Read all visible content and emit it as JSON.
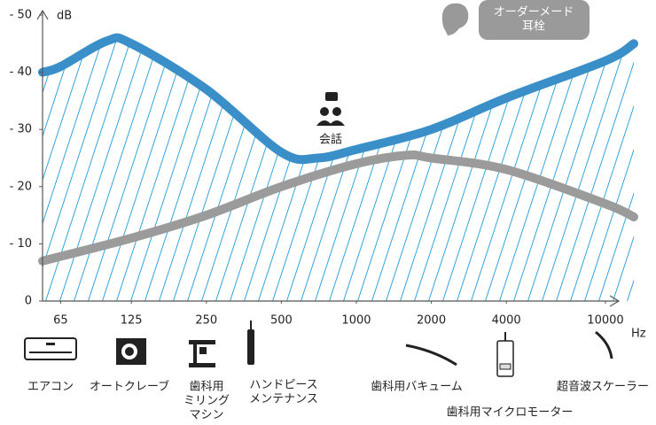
{
  "chart_data": {
    "type": "line",
    "ylabel": "dB",
    "xlabel": "Hz",
    "log_x": true,
    "xlim": [
      55,
      13000
    ],
    "xticks": [
      65,
      125,
      250,
      500,
      1000,
      2000,
      4000,
      10000
    ],
    "ylim": [
      0,
      -50
    ],
    "yticks": [
      {
        "value": 0,
        "label": "0"
      },
      {
        "value": -10,
        "label": "- 10"
      },
      {
        "value": -20,
        "label": "- 20"
      },
      {
        "value": -30,
        "label": "- 30"
      },
      {
        "value": -40,
        "label": "- 40"
      },
      {
        "value": -50,
        "label": "- 50"
      }
    ],
    "hatch": true,
    "series": [
      {
        "color": "#3a8fc8",
        "x": [
          55,
          65,
          100,
          125,
          250,
          500,
          700,
          1000,
          2000,
          4000,
          10000,
          13000
        ],
        "values": [
          -40,
          -41,
          -45.5,
          -45,
          -37,
          -26,
          -25,
          -26.5,
          -30,
          -35.5,
          -42,
          -45
        ]
      },
      {
        "color": "#9b9b9b",
        "x": [
          55,
          125,
          250,
          500,
          1000,
          1600,
          2000,
          4000,
          10000,
          13000
        ],
        "values": [
          -7,
          -11,
          -15,
          -20,
          -24,
          -25.5,
          -25,
          -23,
          -17,
          -14.7
        ]
      }
    ],
    "annotations": [
      {
        "lines": [
          "会話"
        ]
      },
      {
        "lines": [
          "オーダーメード",
          "耳栓"
        ]
      },
      {
        "lines": [
          "エアコン"
        ]
      },
      {
        "lines": [
          "オートクレーブ"
        ]
      },
      {
        "lines": [
          "歯科用",
          "ミリング",
          "マシン"
        ]
      },
      {
        "lines": [
          "ハンドピース",
          "メンテナンス"
        ]
      },
      {
        "lines": [
          "歯科用バキューム"
        ]
      },
      {
        "lines": [
          "歯科用マイクロモーター"
        ]
      },
      {
        "lines": [
          "超音波スケーラー"
        ]
      }
    ]
  }
}
